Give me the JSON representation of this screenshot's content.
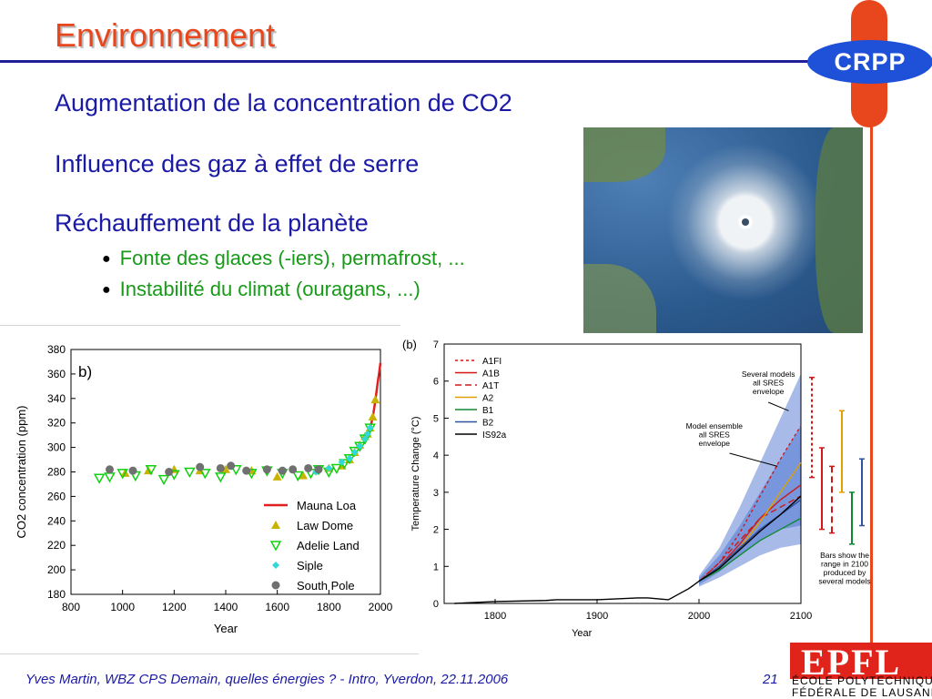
{
  "slide": {
    "title": "Environnement",
    "logo_text": "CRPP",
    "headings": [
      "Augmentation de la concentration de CO2",
      "Influence des gaz à effet de serre",
      "Réchauffement de la planète"
    ],
    "bullets": [
      "Fonte des glaces (-iers), permafrost, ...",
      "Instabilité du climat (ouragans, ...)"
    ],
    "footer": "Yves Martin, WBZ CPS Demain, quelles énergies ? - Intro, Yverdon, 22.11.2006",
    "page_number": "21",
    "epfl_logo_text": "EPFL",
    "epfl_line1": "ÉCOLE POLYTECHNIQUE",
    "epfl_line2": "FÉDÉRALE DE LAUSANNE"
  },
  "colors": {
    "title": "#e8461c",
    "heading": "#1a1aa5",
    "bullet": "#179a17",
    "crpp_blue": "#1f50d8",
    "epfl_red": "#e0241b"
  },
  "chart_data": [
    {
      "type": "scatter",
      "panel_label": "b)",
      "xlabel": "Year",
      "ylabel": "CO2 concentration (ppm)",
      "xlim": [
        800,
        2000
      ],
      "ylim": [
        180,
        380
      ],
      "xticks": [
        800,
        1000,
        1200,
        1400,
        1600,
        1800,
        2000
      ],
      "yticks": [
        180,
        200,
        220,
        240,
        260,
        280,
        300,
        320,
        340,
        360,
        380
      ],
      "legend_position": "bottom-right",
      "series": [
        {
          "name": "Mauna Loa",
          "kind": "line",
          "color": "#e02020",
          "x": [
            1958,
            1965,
            1970,
            1975,
            1980,
            1985,
            1990,
            1995,
            2000
          ],
          "y": [
            315,
            320,
            325,
            331,
            338,
            346,
            354,
            361,
            369
          ]
        },
        {
          "name": "Law Dome",
          "kind": "triangle-up",
          "color": "#c8b400",
          "x": [
            1010,
            1100,
            1200,
            1300,
            1400,
            1500,
            1600,
            1700,
            1800,
            1850,
            1880,
            1900,
            1920,
            1940,
            1950,
            1960,
            1970,
            1980
          ],
          "y": [
            279,
            281,
            282,
            281,
            282,
            281,
            276,
            277,
            283,
            285,
            290,
            296,
            302,
            309,
            311,
            316,
            325,
            339
          ]
        },
        {
          "name": "Adelie Land",
          "kind": "triangle-down",
          "color": "#10d010",
          "x": [
            910,
            950,
            1000,
            1050,
            1110,
            1160,
            1200,
            1260,
            1320,
            1380,
            1440,
            1500,
            1560,
            1620,
            1680,
            1730,
            1760,
            1800,
            1830,
            1860,
            1880,
            1900,
            1920,
            1940,
            1960
          ],
          "y": [
            275,
            276,
            279,
            277,
            282,
            274,
            278,
            280,
            279,
            276,
            282,
            279,
            281,
            279,
            277,
            279,
            282,
            280,
            283,
            287,
            291,
            297,
            301,
            307,
            316
          ]
        },
        {
          "name": "Siple",
          "kind": "diamond",
          "color": "#30d8d8",
          "x": [
            1750,
            1800,
            1850,
            1880,
            1900,
            1920,
            1940,
            1950,
            1960
          ],
          "y": [
            280,
            283,
            288,
            291,
            296,
            301,
            307,
            311,
            316
          ]
        },
        {
          "name": "South Pole",
          "kind": "circle",
          "color": "#707070",
          "x": [
            950,
            1040,
            1180,
            1300,
            1380,
            1420,
            1480,
            1560,
            1620,
            1660,
            1720,
            1760
          ],
          "y": [
            282,
            281,
            280,
            284,
            283,
            285,
            281,
            282,
            281,
            282,
            283,
            282
          ]
        }
      ]
    },
    {
      "type": "line",
      "panel_label": "(b)",
      "xlabel": "Year",
      "ylabel": "Temperature Change (°C)",
      "xlim": [
        1750,
        2100
      ],
      "ylim": [
        0,
        7
      ],
      "xticks": [
        1800,
        1900,
        2000,
        2100
      ],
      "yticks": [
        0,
        1,
        2,
        3,
        4,
        5,
        6,
        7
      ],
      "legend_position": "top-left",
      "annotations": [
        "Several models all SRES envelope",
        "Model ensemble all SRES envelope",
        "Bars show the range in 2100 produced by several models"
      ],
      "historical": {
        "x": [
          1760,
          1800,
          1850,
          1860,
          1900,
          1940,
          1950,
          1970,
          1980,
          1990,
          2000
        ],
        "y": [
          0.0,
          0.05,
          0.08,
          0.1,
          0.1,
          0.15,
          0.15,
          0.1,
          0.25,
          0.4,
          0.6
        ]
      },
      "envelope_outer": {
        "x": [
          2000,
          2020,
          2040,
          2060,
          2080,
          2100
        ],
        "low": [
          0.45,
          0.7,
          1.0,
          1.3,
          1.5,
          1.6
        ],
        "high": [
          0.75,
          1.5,
          2.6,
          3.8,
          5.0,
          6.2
        ]
      },
      "envelope_inner": {
        "x": [
          2000,
          2020,
          2040,
          2060,
          2080,
          2100
        ],
        "low": [
          0.5,
          0.85,
          1.3,
          1.7,
          2.0,
          2.1
        ],
        "high": [
          0.7,
          1.3,
          2.1,
          3.0,
          3.9,
          4.8
        ]
      },
      "series": [
        {
          "name": "A1FI",
          "style": "dotted",
          "color": "#d01818",
          "x": [
            2000,
            2020,
            2040,
            2060,
            2080,
            2100
          ],
          "y": [
            0.6,
            1.1,
            1.9,
            2.9,
            3.9,
            4.8
          ]
        },
        {
          "name": "A1B",
          "style": "solid",
          "color": "#d01818",
          "x": [
            2000,
            2020,
            2040,
            2060,
            2080,
            2100
          ],
          "y": [
            0.6,
            1.0,
            1.6,
            2.3,
            2.8,
            3.2
          ]
        },
        {
          "name": "A1T",
          "style": "dashed",
          "color": "#d01818",
          "x": [
            2000,
            2020,
            2040,
            2060,
            2080,
            2100
          ],
          "y": [
            0.6,
            1.1,
            1.7,
            2.3,
            2.6,
            2.9
          ]
        },
        {
          "name": "A2",
          "style": "solid",
          "color": "#e0a000",
          "x": [
            2000,
            2020,
            2040,
            2060,
            2080,
            2100
          ],
          "y": [
            0.6,
            1.0,
            1.5,
            2.2,
            3.0,
            3.8
          ]
        },
        {
          "name": "B1",
          "style": "solid",
          "color": "#108a30",
          "x": [
            2000,
            2020,
            2040,
            2060,
            2080,
            2100
          ],
          "y": [
            0.6,
            0.9,
            1.3,
            1.7,
            2.0,
            2.3
          ]
        },
        {
          "name": "B2",
          "style": "solid",
          "color": "#3050a0",
          "x": [
            2000,
            2020,
            2040,
            2060,
            2080,
            2100
          ],
          "y": [
            0.6,
            1.0,
            1.5,
            2.0,
            2.4,
            2.8
          ]
        },
        {
          "name": "IS92a",
          "style": "solid",
          "color": "#000000",
          "x": [
            2000,
            2020,
            2040,
            2060,
            2080,
            2100
          ],
          "y": [
            0.6,
            0.95,
            1.45,
            1.95,
            2.4,
            2.9
          ]
        }
      ],
      "range_bars_2100": [
        {
          "name": "A1FI",
          "style": "dotted",
          "color": "#d01818",
          "low": 3.4,
          "high": 6.1
        },
        {
          "name": "A1B",
          "style": "solid",
          "color": "#d01818",
          "low": 2.0,
          "high": 4.2
        },
        {
          "name": "A1T",
          "style": "dashed",
          "color": "#d01818",
          "low": 1.9,
          "high": 3.7
        },
        {
          "name": "A2",
          "style": "solid",
          "color": "#e0a000",
          "low": 3.0,
          "high": 5.2
        },
        {
          "name": "B1",
          "style": "solid",
          "color": "#108a30",
          "low": 1.6,
          "high": 3.0
        },
        {
          "name": "B2",
          "style": "solid",
          "color": "#3050a0",
          "low": 2.1,
          "high": 3.9
        }
      ]
    }
  ]
}
